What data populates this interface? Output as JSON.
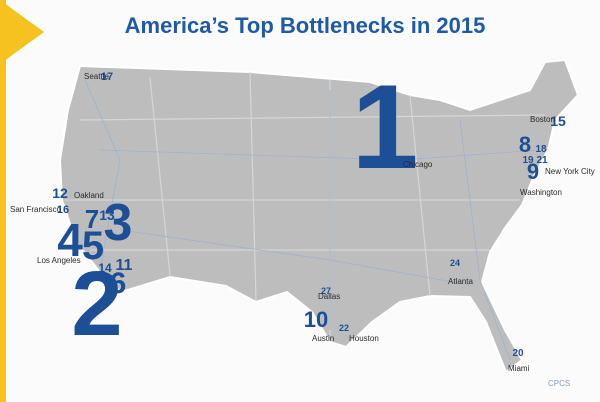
{
  "header": {
    "title": "America’s Top Bottlenecks in 2015"
  },
  "ranks": [
    1,
    2,
    3,
    4,
    5,
    6,
    7,
    8,
    9,
    10,
    11,
    12,
    13,
    14,
    15,
    16,
    17,
    18,
    19,
    20,
    21,
    22,
    24,
    27
  ],
  "cities": [
    "Seattle",
    "Oakland",
    "San Francisco",
    "Los Angeles",
    "Chicago",
    "Boston",
    "New York City",
    "Washington",
    "Atlanta",
    "Dallas",
    "Austin",
    "Houston",
    "Miami"
  ],
  "credit": "CPCS"
}
